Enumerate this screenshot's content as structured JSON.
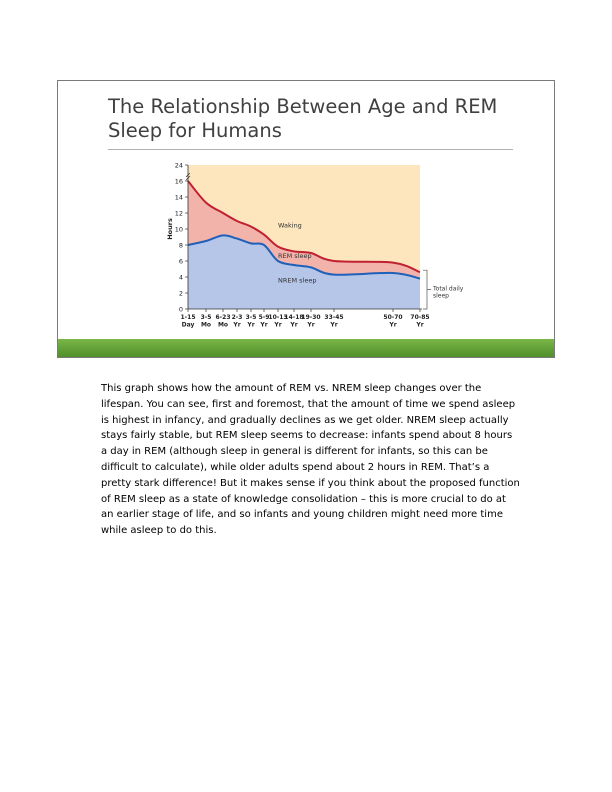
{
  "slide": {
    "title": "The Relationship Between Age and REM Sleep for Humans",
    "accent_color": "#5a9a32"
  },
  "chart_data": {
    "type": "area",
    "title": "",
    "ylabel": "Hours",
    "ylim": [
      0,
      24
    ],
    "y_ticks": [
      "0",
      "2",
      "4",
      "6",
      "8",
      "10",
      "12",
      "14",
      "16",
      "24"
    ],
    "categories": [
      {
        "top": "1-15",
        "bottom": "Day"
      },
      {
        "top": "3-5",
        "bottom": "Mo"
      },
      {
        "top": "6-23",
        "bottom": "Mo"
      },
      {
        "top": "2-3",
        "bottom": "Yr"
      },
      {
        "top": "3-5",
        "bottom": "Yr"
      },
      {
        "top": "5-9",
        "bottom": "Yr"
      },
      {
        "top": "10-13",
        "bottom": "Yr"
      },
      {
        "top": "14-18",
        "bottom": "Yr"
      },
      {
        "top": "19-30",
        "bottom": "Yr"
      },
      {
        "top": "33-45",
        "bottom": "Yr"
      },
      {
        "top": "50-70",
        "bottom": "Yr"
      },
      {
        "top": "70-85",
        "bottom": "Yr"
      }
    ],
    "series": [
      {
        "name": "NREM sleep",
        "values": [
          8,
          8.5,
          9.2,
          8.8,
          8.2,
          8,
          6,
          5.5,
          5.2,
          4.3,
          4.5,
          3.8
        ]
      },
      {
        "name": "Total daily sleep",
        "values": [
          16,
          13.3,
          12,
          11,
          10.3,
          9.3,
          7.8,
          7.2,
          7,
          6,
          5.8,
          4.6
        ]
      }
    ],
    "region_labels": [
      "Waking",
      "REM sleep",
      "NREM sleep"
    ],
    "bracket_label": [
      "Total daily",
      "sleep"
    ],
    "colors": {
      "waking": "#fde6be",
      "rem": "#f2b3ab",
      "nrem": "#b5c6e8",
      "total_line": "#c02030",
      "nrem_line": "#2060b8"
    }
  },
  "notes": {
    "text": "This graph shows how the amount of REM vs. NREM sleep changes over the lifespan. You can see, first and foremost, that the amount of time we spend asleep is highest in infancy, and gradually declines as we get older. NREM sleep actually stays fairly stable, but REM sleep seems to decrease: infants spend about 8 hours a day in REM (although sleep in general is different for infants, so this can be difficult to calculate), while older adults spend about 2 hours in REM. That’s a pretty stark difference! But it makes sense if you think about the proposed function of REM sleep as a state of knowledge consolidation – this is more crucial to do at an earlier stage of life, and so infants and young children might need more time while asleep to do this."
  }
}
